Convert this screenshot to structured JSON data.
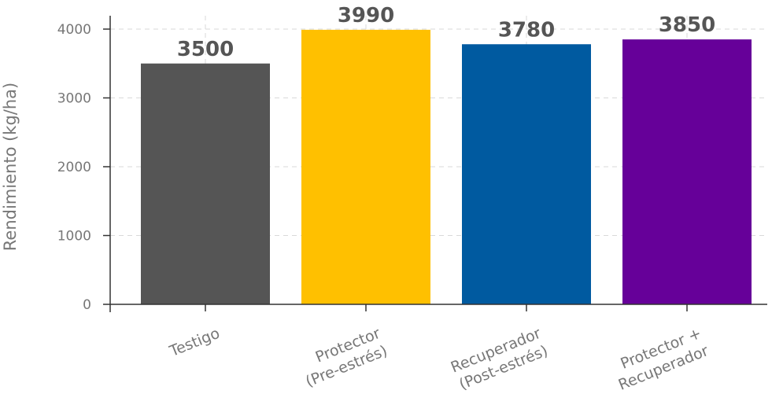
{
  "chart_data": {
    "type": "bar",
    "ylabel": "Rendimiento (kg/ha)",
    "xlabel": "",
    "ylim": [
      0,
      4000
    ],
    "yticks": [
      0,
      1000,
      2000,
      3000,
      4000
    ],
    "grid": true,
    "categories": [
      [
        "Testigo"
      ],
      [
        "Protector",
        "(Pre-estrés)"
      ],
      [
        "Recuperador",
        "(Post-estrés)"
      ],
      [
        "Protector +",
        "Recuperador"
      ]
    ],
    "values": [
      3500,
      3990,
      3780,
      3850
    ],
    "data_labels": [
      "3500",
      "3990",
      "3780",
      "3850"
    ],
    "colors": [
      "#555555",
      "#FFC000",
      "#005AA0",
      "#660099"
    ]
  }
}
